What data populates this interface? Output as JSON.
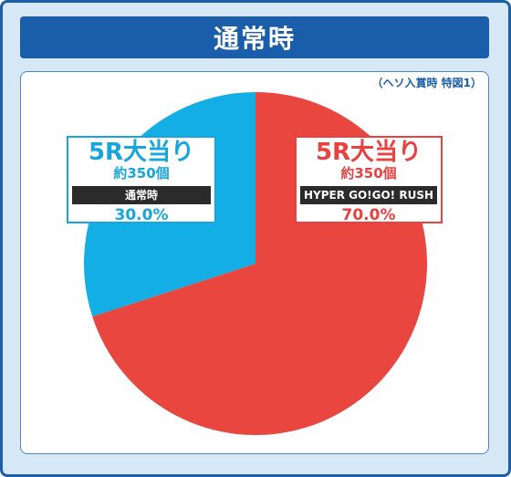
{
  "title": "通常時",
  "note": "（ヘソ入賞時 特図1）",
  "colors": {
    "red": "#e8463f",
    "blue": "#14aee6",
    "title_bg": "#1a5da8"
  },
  "chart_data": {
    "type": "pie",
    "title": "通常時",
    "slices": [
      {
        "label": "5R大当り",
        "sub": "約350個",
        "mode": "HYPER GO!GO! RUSH",
        "value": 70.0,
        "value_label": "70.0%",
        "color": "#e8463f"
      },
      {
        "label": "5R大当り",
        "sub": "約350個",
        "mode": "通常時",
        "value": 30.0,
        "value_label": "30.0%",
        "color": "#14aee6"
      }
    ]
  }
}
